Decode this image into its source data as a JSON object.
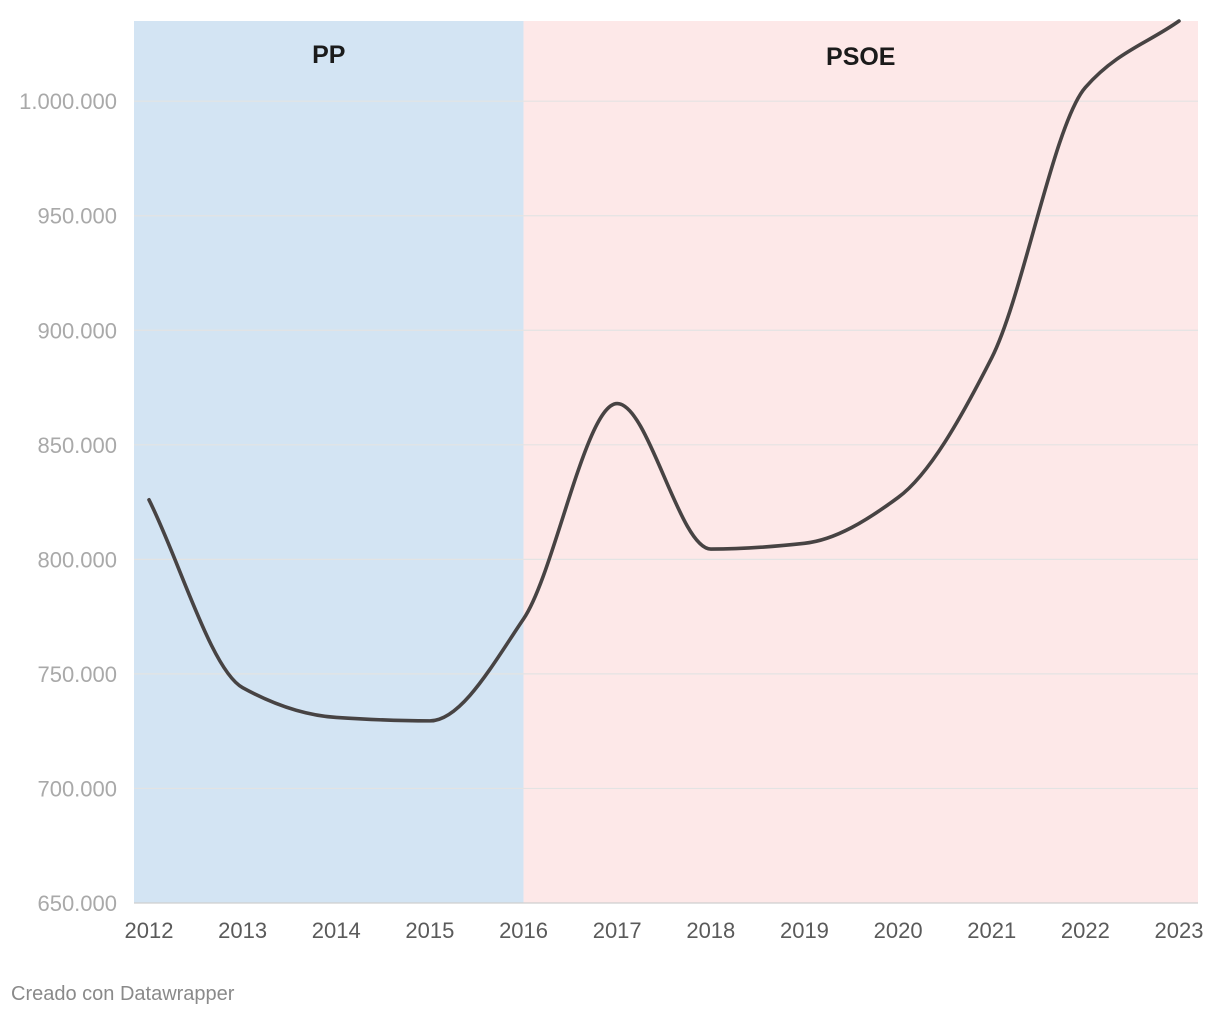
{
  "chart_data": {
    "type": "line",
    "title": "",
    "xlabel": "",
    "ylabel": "",
    "x": [
      2012,
      2013,
      2014,
      2015,
      2016,
      2017,
      2018,
      2019,
      2020,
      2021,
      2022,
      2023
    ],
    "x_tick_labels": [
      "2012",
      "2013",
      "2014",
      "2015",
      "2016",
      "2017",
      "2018",
      "2019",
      "2020",
      "2021",
      "2022",
      "2023"
    ],
    "ylim": [
      650000,
      1035000
    ],
    "y_ticks": [
      650000,
      700000,
      750000,
      800000,
      850000,
      900000,
      950000,
      1000000
    ],
    "y_tick_labels": [
      "650.000",
      "700.000",
      "750.000",
      "800.000",
      "850.000",
      "900.000",
      "950.000",
      "1.000.000"
    ],
    "series": [
      {
        "values": [
          826000,
          744000,
          731000,
          729500,
          774000,
          868000,
          804500,
          807000,
          827000,
          888000,
          1006000,
          1035000
        ],
        "color": "#474343"
      }
    ],
    "bands": [
      {
        "label": "PP",
        "from": 2012,
        "to": 2016,
        "color": "#d3e4f3"
      },
      {
        "label": "PSOE",
        "from": 2016,
        "to": 2023,
        "color": "#fde8e8"
      }
    ],
    "grid": true,
    "legend": "none"
  },
  "footer": {
    "credit": "Creado con Datawrapper"
  }
}
